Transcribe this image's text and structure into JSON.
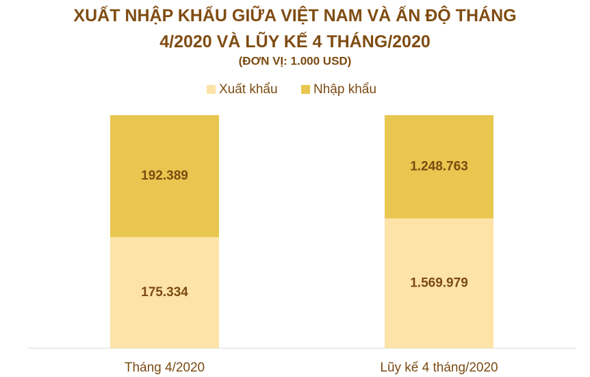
{
  "chart_data": {
    "type": "bar",
    "stacked": "percent",
    "title": "XUẤT NHẬP KHẨU GIỮA VIỆT NAM VÀ ẤN ĐỘ THÁNG 4/2020 VÀ LŨY KẾ 4 THÁNG/2020",
    "subtitle": "(ĐƠN VỊ: 1.000 USD)",
    "categories": [
      "Tháng 4/2020",
      "Lũy kế 4 tháng/2020"
    ],
    "series": [
      {
        "name": "Xuất khẩu",
        "color": "#fde3a8",
        "values": [
          175334,
          1569979
        ],
        "value_labels": [
          "175.334",
          "1.569.979"
        ]
      },
      {
        "name": "Nhập khẩu",
        "color": "#e8c64f",
        "values": [
          192389,
          1248763
        ],
        "value_labels": [
          "192.389",
          "1.248.763"
        ]
      }
    ],
    "legend": "top"
  }
}
